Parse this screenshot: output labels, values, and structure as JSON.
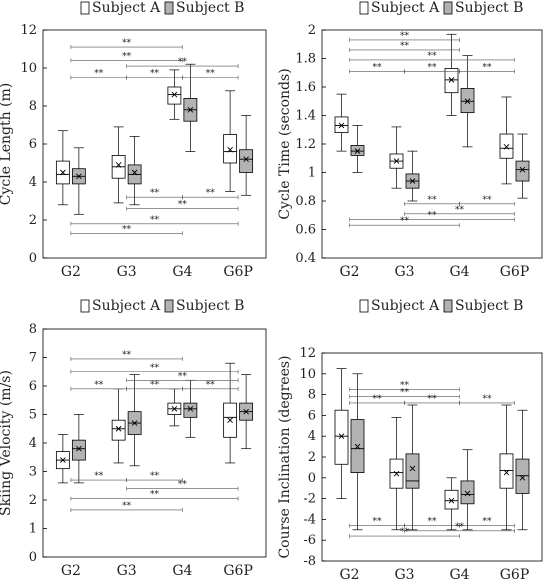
{
  "chart_data": [
    {
      "type": "boxplot",
      "ylabel": "Cycle Length (m)",
      "ylim": [
        0,
        12
      ],
      "yticks": [
        0,
        2,
        4,
        6,
        8,
        10,
        12
      ],
      "categories": [
        "G2",
        "G3",
        "G4",
        "G6P"
      ],
      "legend": [
        "Subject A",
        "Subject B"
      ],
      "series": [
        {
          "name": "Subject A",
          "color": "#ffffff",
          "boxes": [
            {
              "min": 2.8,
              "q1": 3.9,
              "median": 4.4,
              "q3": 5.1,
              "max": 6.7,
              "mean": 4.5
            },
            {
              "min": 2.9,
              "q1": 4.2,
              "median": 4.8,
              "q3": 5.4,
              "max": 6.9,
              "mean": 4.9
            },
            {
              "min": 7.3,
              "q1": 8.1,
              "median": 8.6,
              "q3": 9.0,
              "max": 9.9,
              "mean": 8.6
            },
            {
              "min": 3.5,
              "q1": 5.0,
              "median": 5.6,
              "q3": 6.5,
              "max": 8.8,
              "mean": 5.7
            }
          ]
        },
        {
          "name": "Subject B",
          "color": "#b3b3b3",
          "boxes": [
            {
              "min": 2.3,
              "q1": 3.9,
              "median": 4.3,
              "q3": 4.7,
              "max": 5.8,
              "mean": 4.3
            },
            {
              "min": 2.8,
              "q1": 3.9,
              "median": 4.4,
              "q3": 4.9,
              "max": 6.4,
              "mean": 4.5
            },
            {
              "min": 5.6,
              "q1": 7.2,
              "median": 7.8,
              "q3": 8.4,
              "max": 10.2,
              "mean": 7.8
            },
            {
              "min": 3.3,
              "q1": 4.5,
              "median": 5.2,
              "q3": 5.7,
              "max": 7.5,
              "mean": 5.2
            }
          ]
        }
      ],
      "significance": [
        {
          "from": 0,
          "to": 2,
          "y": 11.1,
          "label": "**"
        },
        {
          "from": 0,
          "to": 2,
          "y": 10.4,
          "label": "**"
        },
        {
          "from": 0,
          "to": 1,
          "y": 9.5,
          "label": "**"
        },
        {
          "from": 1,
          "to": 3,
          "y": 10.1,
          "label": "**"
        },
        {
          "from": 1,
          "to": 2,
          "y": 9.5,
          "label": "**"
        },
        {
          "from": 2,
          "to": 3,
          "y": 9.5,
          "label": "**"
        },
        {
          "from": 1,
          "to": 2,
          "y": 3.2,
          "label": "**"
        },
        {
          "from": 2,
          "to": 3,
          "y": 3.2,
          "label": "**"
        },
        {
          "from": 1,
          "to": 3,
          "y": 2.6,
          "label": "**"
        },
        {
          "from": 0,
          "to": 3,
          "y": 1.8,
          "label": "**"
        },
        {
          "from": 0,
          "to": 2,
          "y": 1.3,
          "label": "**"
        }
      ]
    },
    {
      "type": "boxplot",
      "ylabel": "Cycle Time (seconds)",
      "ylim": [
        0.4,
        2
      ],
      "yticks": [
        0.4,
        0.6,
        0.8,
        1,
        1.2,
        1.4,
        1.6,
        1.8,
        2
      ],
      "categories": [
        "G2",
        "G3",
        "G4",
        "G6P"
      ],
      "legend": [
        "Subject A",
        "Subject B"
      ],
      "series": [
        {
          "name": "Subject A",
          "color": "#ffffff",
          "boxes": [
            {
              "min": 1.15,
              "q1": 1.28,
              "median": 1.33,
              "q3": 1.39,
              "max": 1.55,
              "mean": 1.33
            },
            {
              "min": 0.89,
              "q1": 1.03,
              "median": 1.08,
              "q3": 1.13,
              "max": 1.32,
              "mean": 1.08
            },
            {
              "min": 1.4,
              "q1": 1.56,
              "median": 1.65,
              "q3": 1.73,
              "max": 1.97,
              "mean": 1.65
            },
            {
              "min": 0.92,
              "q1": 1.1,
              "median": 1.17,
              "q3": 1.27,
              "max": 1.53,
              "mean": 1.18
            }
          ]
        },
        {
          "name": "Subject B",
          "color": "#b3b3b3",
          "boxes": [
            {
              "min": 1.0,
              "q1": 1.12,
              "median": 1.15,
              "q3": 1.19,
              "max": 1.33,
              "mean": 1.15
            },
            {
              "min": 0.8,
              "q1": 0.89,
              "median": 0.94,
              "q3": 0.99,
              "max": 1.15,
              "mean": 0.94
            },
            {
              "min": 1.18,
              "q1": 1.42,
              "median": 1.5,
              "q3": 1.59,
              "max": 1.82,
              "mean": 1.5
            },
            {
              "min": 0.82,
              "q1": 0.94,
              "median": 1.02,
              "q3": 1.08,
              "max": 1.27,
              "mean": 1.02
            }
          ]
        }
      ],
      "significance": [
        {
          "from": 0,
          "to": 2,
          "y": 1.93,
          "label": "**"
        },
        {
          "from": 0,
          "to": 2,
          "y": 1.86,
          "label": "**"
        },
        {
          "from": 0,
          "to": 3,
          "y": 1.79,
          "label": "**"
        },
        {
          "from": 0,
          "to": 1,
          "y": 1.71,
          "label": "**"
        },
        {
          "from": 1,
          "to": 2,
          "y": 1.71,
          "label": "**"
        },
        {
          "from": 2,
          "to": 3,
          "y": 1.71,
          "label": "**"
        },
        {
          "from": 1,
          "to": 2,
          "y": 0.78,
          "label": "**"
        },
        {
          "from": 2,
          "to": 3,
          "y": 0.78,
          "label": "**"
        },
        {
          "from": 1,
          "to": 3,
          "y": 0.71,
          "label": "**"
        },
        {
          "from": 0,
          "to": 3,
          "y": 0.67,
          "label": "**"
        },
        {
          "from": 0,
          "to": 2,
          "y": 0.63,
          "label": "**"
        }
      ]
    },
    {
      "type": "boxplot",
      "ylabel": "Skiing Velocity (m/s)",
      "ylim": [
        0,
        8
      ],
      "yticks": [
        0,
        1,
        2,
        3,
        4,
        5,
        6,
        7,
        8
      ],
      "categories": [
        "G2",
        "G3",
        "G4",
        "G6P"
      ],
      "legend": [
        "Subject A",
        "Subject B"
      ],
      "series": [
        {
          "name": "Subject A",
          "color": "#ffffff",
          "boxes": [
            {
              "min": 2.6,
              "q1": 3.1,
              "median": 3.4,
              "q3": 3.7,
              "max": 4.3,
              "mean": 3.4
            },
            {
              "min": 3.3,
              "q1": 4.1,
              "median": 4.5,
              "q3": 4.8,
              "max": 5.9,
              "mean": 4.5
            },
            {
              "min": 4.6,
              "q1": 5.0,
              "median": 5.2,
              "q3": 5.4,
              "max": 5.9,
              "mean": 5.2
            },
            {
              "min": 3.3,
              "q1": 4.2,
              "median": 4.9,
              "q3": 5.4,
              "max": 6.8,
              "mean": 4.8
            }
          ]
        },
        {
          "name": "Subject B",
          "color": "#b3b3b3",
          "boxes": [
            {
              "min": 2.6,
              "q1": 3.4,
              "median": 3.8,
              "q3": 4.1,
              "max": 5.0,
              "mean": 3.8
            },
            {
              "min": 3.2,
              "q1": 4.3,
              "median": 4.7,
              "q3": 5.1,
              "max": 6.4,
              "mean": 4.7
            },
            {
              "min": 4.2,
              "q1": 4.9,
              "median": 5.2,
              "q3": 5.4,
              "max": 6.2,
              "mean": 5.2
            },
            {
              "min": 3.8,
              "q1": 4.8,
              "median": 5.1,
              "q3": 5.4,
              "max": 6.4,
              "mean": 5.1
            }
          ]
        }
      ],
      "significance": [
        {
          "from": 0,
          "to": 2,
          "y": 6.95,
          "label": "**"
        },
        {
          "from": 0,
          "to": 3,
          "y": 6.5,
          "label": "**"
        },
        {
          "from": 1,
          "to": 3,
          "y": 6.2,
          "label": "**"
        },
        {
          "from": 0,
          "to": 1,
          "y": 5.9,
          "label": "**"
        },
        {
          "from": 1,
          "to": 2,
          "y": 5.9,
          "label": "**"
        },
        {
          "from": 2,
          "to": 3,
          "y": 5.9,
          "label": "**"
        },
        {
          "from": 0,
          "to": 1,
          "y": 2.7,
          "label": "**"
        },
        {
          "from": 1,
          "to": 2,
          "y": 2.7,
          "label": "**"
        },
        {
          "from": 1,
          "to": 3,
          "y": 2.4,
          "label": "**"
        },
        {
          "from": 0,
          "to": 3,
          "y": 2.05,
          "label": "**"
        },
        {
          "from": 0,
          "to": 2,
          "y": 1.65,
          "label": "**"
        }
      ]
    },
    {
      "type": "boxplot",
      "ylabel": "Course Inclination (degrees)",
      "ylim": [
        -8,
        12
      ],
      "yticks": [
        -8,
        -6,
        -4,
        -2,
        0,
        2,
        4,
        6,
        8,
        10,
        12
      ],
      "categories": [
        "G2",
        "G3",
        "G4",
        "G6P"
      ],
      "legend": [
        "Subject A",
        "Subject B"
      ],
      "series": [
        {
          "name": "Subject A",
          "color": "#ffffff",
          "boxes": [
            {
              "min": -2.0,
              "q1": 1.3,
              "median": 4.0,
              "q3": 6.5,
              "max": 10.5,
              "mean": 4.0
            },
            {
              "min": -5.0,
              "q1": -1.0,
              "median": 0.5,
              "q3": 1.8,
              "max": 5.8,
              "mean": 0.4
            },
            {
              "min": -5.0,
              "q1": -3.0,
              "median": -2.2,
              "q3": -1.2,
              "max": 0.0,
              "mean": -2.2
            },
            {
              "min": -5.0,
              "q1": -1.0,
              "median": 0.7,
              "q3": 2.3,
              "max": 7.0,
              "mean": 0.5
            }
          ]
        },
        {
          "name": "Subject B",
          "color": "#b3b3b3",
          "boxes": [
            {
              "min": -5.0,
              "q1": 0.5,
              "median": 2.8,
              "q3": 5.6,
              "max": 10.0,
              "mean": 3.0
            },
            {
              "min": -5.0,
              "q1": -1.0,
              "median": -0.3,
              "q3": 2.3,
              "max": 7.0,
              "mean": 0.9
            },
            {
              "min": -5.0,
              "q1": -2.5,
              "median": -1.6,
              "q3": -0.3,
              "max": 2.7,
              "mean": -1.5
            },
            {
              "min": -5.0,
              "q1": -1.5,
              "median": 0.2,
              "q3": 1.8,
              "max": 6.5,
              "mean": 0.0
            }
          ]
        }
      ],
      "significance": [
        {
          "from": 0,
          "to": 2,
          "y": 8.5,
          "label": "**"
        },
        {
          "from": 0,
          "to": 2,
          "y": 7.8,
          "label": "**"
        },
        {
          "from": 0,
          "to": 1,
          "y": 7.2,
          "label": "**"
        },
        {
          "from": 1,
          "to": 2,
          "y": 7.2,
          "label": "**"
        },
        {
          "from": 2,
          "to": 3,
          "y": 7.2,
          "label": "**"
        },
        {
          "from": 0,
          "to": 1,
          "y": -4.6,
          "label": "**"
        },
        {
          "from": 1,
          "to": 2,
          "y": -4.6,
          "label": "**"
        },
        {
          "from": 2,
          "to": 3,
          "y": -4.6,
          "label": "**"
        },
        {
          "from": 1,
          "to": 3,
          "y": -5.1,
          "label": "**"
        },
        {
          "from": 0,
          "to": 2,
          "y": -5.6,
          "label": "**"
        }
      ]
    }
  ]
}
